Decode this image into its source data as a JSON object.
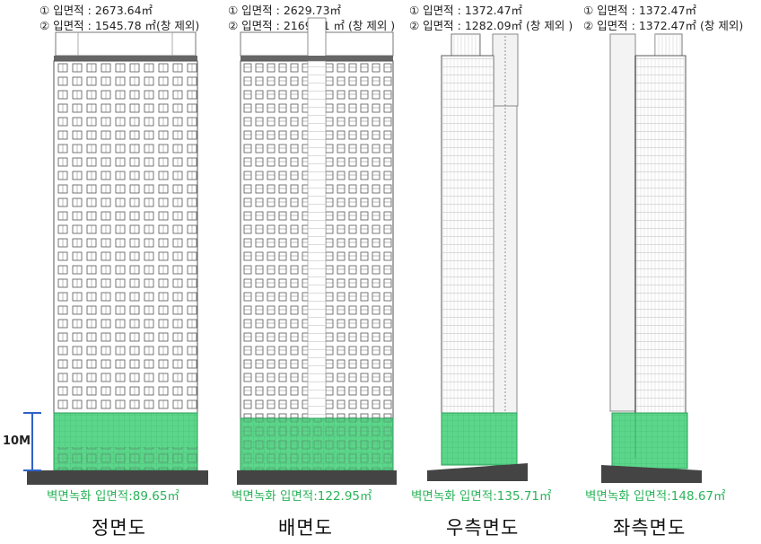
{
  "elevations": [
    {
      "id": "front",
      "specs": [
        "① 입면적 : 2673.64㎡",
        "② 입면적 : 1545.78 ㎡(창 제외)"
      ],
      "green_label": "벽면녹화 입면적:89.65㎡",
      "title": "정면도"
    },
    {
      "id": "back",
      "specs": [
        "① 입면적 : 2629.73㎡",
        "② 입면적 : 2169.51 ㎡ (창 제외 )"
      ],
      "green_label": "벽면녹화 입면적:122.95㎡",
      "title": "배면도"
    },
    {
      "id": "right",
      "specs": [
        "① 입면적 : 1372.47㎡",
        "② 입면적 : 1282.09㎡ (창 제외 )"
      ],
      "green_label": "벽면녹화 입면적:135.71㎡",
      "title": "우측면도"
    },
    {
      "id": "left",
      "specs": [
        "① 입면적 : 1372.47㎡",
        "② 입면적 : 1372.47㎡ (창 제외)"
      ],
      "green_label": "벽면녹화 입면적:148.67㎡",
      "title": "좌측면도"
    }
  ],
  "scale_label": "10M",
  "colors": {
    "green_fill": "#3fcf76",
    "green_text": "#2bb35a",
    "scale_blue": "#2f62c8",
    "ground": "#444444"
  }
}
